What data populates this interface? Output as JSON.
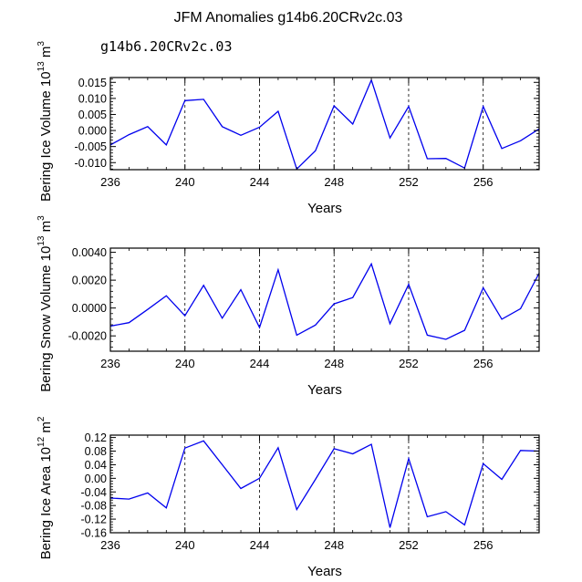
{
  "title": "JFM Anomalies g14b6.20CRv2c.03",
  "run_label": "g14b6.20CRv2c.03",
  "run_label_color": "#4a5ad8",
  "line_color": "#0000ee",
  "chart_data": [
    {
      "type": "line",
      "name": "ice-volume",
      "x": [
        236,
        237,
        238,
        239,
        240,
        241,
        242,
        243,
        244,
        245,
        246,
        247,
        248,
        249,
        250,
        251,
        252,
        253,
        254,
        255,
        256,
        257,
        258,
        259
      ],
      "series": [
        {
          "name": "g14b6.20CRv2c.03",
          "values": [
            -0.0045,
            -0.0013,
            0.0012,
            -0.0045,
            0.0093,
            0.0097,
            0.0012,
            -0.0015,
            0.001,
            0.006,
            -0.012,
            -0.0063,
            0.0077,
            0.002,
            0.0157,
            -0.0023,
            0.0075,
            -0.0088,
            -0.0087,
            -0.0117,
            0.0075,
            -0.0056,
            -0.0032,
            0.0005
          ]
        }
      ],
      "ylabel_main": "Bering Ice Volume 10",
      "ylabel_exp": "13",
      "ylabel_unit": " m",
      "ylabel_unit_exp": "3",
      "xlabel": "Years",
      "xlim": [
        236,
        259
      ],
      "ylim": [
        -0.0122,
        0.0165
      ],
      "yticks": [
        -0.01,
        -0.005,
        0.0,
        0.005,
        0.01,
        0.015
      ],
      "ytick_labels": [
        "-0.010",
        "-0.005",
        "0.000",
        "0.005",
        "0.010",
        "0.015"
      ],
      "xticks": [
        236,
        240,
        244,
        248,
        252,
        256
      ],
      "xtick_labels": [
        "236",
        "240",
        "244",
        "248",
        "252",
        "256"
      ],
      "gridlines_x": [
        240,
        244,
        248,
        252,
        256
      ]
    },
    {
      "type": "line",
      "name": "snow-volume",
      "x": [
        236,
        237,
        238,
        239,
        240,
        241,
        242,
        243,
        244,
        245,
        246,
        247,
        248,
        249,
        250,
        251,
        252,
        253,
        254,
        255,
        256,
        257,
        258,
        259
      ],
      "series": [
        {
          "name": "g14b6.20CRv2c.03",
          "values": [
            -0.0013,
            -0.00105,
            -0.0001,
            0.00088,
            -0.00055,
            0.00163,
            -0.00073,
            0.00132,
            -0.0014,
            0.00275,
            -0.00195,
            -0.00122,
            0.0003,
            0.00075,
            0.00317,
            -0.00112,
            0.0017,
            -0.00195,
            -0.00225,
            -0.0016,
            0.00145,
            -0.0008,
            -5e-05,
            0.0025
          ]
        }
      ],
      "ylabel_main": "Bering Snow Volume 10",
      "ylabel_exp": "13",
      "ylabel_unit": " m",
      "ylabel_unit_exp": "3",
      "xlabel": "Years",
      "xlim": [
        236,
        259
      ],
      "ylim": [
        -0.0031,
        0.0043
      ],
      "yticks": [
        -0.002,
        0.0,
        0.002,
        0.004
      ],
      "ytick_labels": [
        "-0.0020",
        "0.0000",
        "0.0020",
        "0.0040"
      ],
      "xticks": [
        236,
        240,
        244,
        248,
        252,
        256
      ],
      "xtick_labels": [
        "236",
        "240",
        "244",
        "248",
        "252",
        "256"
      ],
      "gridlines_x": [
        240,
        244,
        248,
        252,
        256
      ]
    },
    {
      "type": "line",
      "name": "ice-area",
      "x": [
        236,
        237,
        238,
        239,
        240,
        241,
        242,
        243,
        244,
        245,
        246,
        247,
        248,
        249,
        250,
        251,
        252,
        253,
        254,
        255,
        256,
        257,
        258,
        259
      ],
      "series": [
        {
          "name": "g14b6.20CRv2c.03",
          "values": [
            -0.058,
            -0.061,
            -0.043,
            -0.087,
            0.089,
            0.11,
            0.04,
            -0.03,
            0.0,
            0.09,
            -0.092,
            -0.003,
            0.087,
            0.072,
            0.1,
            -0.145,
            0.058,
            -0.113,
            -0.098,
            -0.137,
            0.043,
            -0.003,
            0.082,
            0.08
          ]
        }
      ],
      "ylabel_main": "Bering Ice Area 10",
      "ylabel_exp": "12",
      "ylabel_unit": " m",
      "ylabel_unit_exp": "2",
      "xlabel": "Years",
      "xlim": [
        236,
        259
      ],
      "ylim": [
        -0.16,
        0.127
      ],
      "yticks": [
        -0.16,
        -0.12,
        -0.08,
        -0.04,
        0.0,
        0.04,
        0.08,
        0.12
      ],
      "ytick_labels": [
        "-0.16",
        "-0.12",
        "-0.08",
        "-0.04",
        "0.00",
        "0.04",
        "0.08",
        "0.12"
      ],
      "xticks": [
        236,
        240,
        244,
        248,
        252,
        256
      ],
      "xtick_labels": [
        "236",
        "240",
        "244",
        "248",
        "252",
        "256"
      ],
      "gridlines_x": [
        240,
        244,
        248,
        252,
        256
      ]
    }
  ]
}
